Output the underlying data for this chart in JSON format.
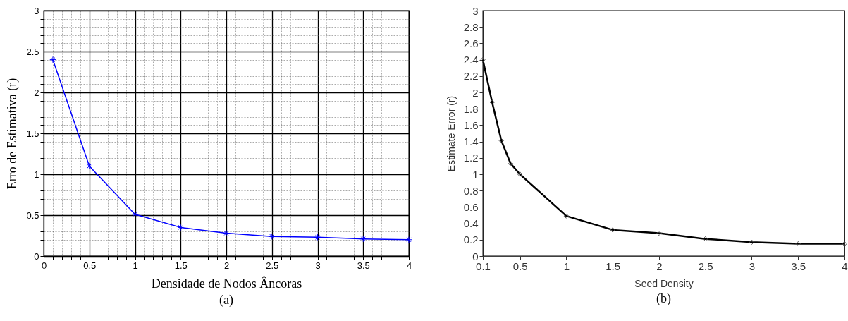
{
  "chart_data": [
    {
      "type": "line",
      "xlabel": "Densidade de Nodos Âncoras",
      "ylabel": "Erro de Estimativa (r)",
      "annotations": [
        "(a)"
      ],
      "grid": true,
      "marker": "cross",
      "x": [
        0.1,
        0.5,
        1,
        1.5,
        2,
        2.5,
        3,
        3.5,
        4
      ],
      "series": [
        {
          "color": "#0000ff",
          "values": [
            2.4,
            1.1,
            0.51,
            0.35,
            0.28,
            0.24,
            0.23,
            0.21,
            0.2
          ]
        }
      ],
      "xlim": [
        0,
        4
      ],
      "ylim": [
        0,
        3
      ],
      "xticks": [
        0,
        {
          "value": 0.1,
          "label": null
        },
        {
          "value": 0.2,
          "label": null
        },
        {
          "value": 0.3,
          "label": null
        },
        {
          "value": 0.4,
          "label": null
        },
        0.5,
        {
          "value": 0.6,
          "label": null
        },
        {
          "value": 0.7,
          "label": null
        },
        {
          "value": 0.8,
          "label": null
        },
        {
          "value": 0.9,
          "label": null
        },
        1,
        {
          "value": 1.1,
          "label": null
        },
        {
          "value": 1.2,
          "label": null
        },
        {
          "value": 1.3,
          "label": null
        },
        {
          "value": 1.4,
          "label": null
        },
        1.5,
        {
          "value": 1.6,
          "label": null
        },
        {
          "value": 1.7,
          "label": null
        },
        {
          "value": 1.8,
          "label": null
        },
        {
          "value": 1.9,
          "label": null
        },
        2,
        {
          "value": 2.1,
          "label": null
        },
        {
          "value": 2.2,
          "label": null
        },
        {
          "value": 2.3,
          "label": null
        },
        {
          "value": 2.4,
          "label": null
        },
        2.5,
        {
          "value": 2.6,
          "label": null
        },
        {
          "value": 2.7,
          "label": null
        },
        {
          "value": 2.8,
          "label": null
        },
        {
          "value": 2.9,
          "label": null
        },
        3,
        {
          "value": 3.1,
          "label": null
        },
        {
          "value": 3.2,
          "label": null
        },
        {
          "value": 3.3,
          "label": null
        },
        {
          "value": 3.4,
          "label": null
        },
        3.5,
        {
          "value": 3.6,
          "label": null
        },
        {
          "value": 3.7,
          "label": null
        },
        {
          "value": 3.8,
          "label": null
        },
        {
          "value": 3.9,
          "label": null
        },
        4
      ],
      "yticks": [
        0,
        {
          "value": 0.1,
          "label": null
        },
        {
          "value": 0.2,
          "label": null
        },
        {
          "value": 0.3,
          "label": null
        },
        {
          "value": 0.4,
          "label": null
        },
        0.5,
        {
          "value": 0.6,
          "label": null
        },
        {
          "value": 0.7,
          "label": null
        },
        {
          "value": 0.8,
          "label": null
        },
        {
          "value": 0.9,
          "label": null
        },
        1,
        {
          "value": 1.1,
          "label": null
        },
        {
          "value": 1.2,
          "label": null
        },
        {
          "value": 1.3,
          "label": null
        },
        {
          "value": 1.4,
          "label": null
        },
        1.5,
        {
          "value": 1.6,
          "label": null
        },
        {
          "value": 1.7,
          "label": null
        },
        {
          "value": 1.8,
          "label": null
        },
        {
          "value": 1.9,
          "label": null
        },
        2,
        {
          "value": 2.1,
          "label": null
        },
        {
          "value": 2.2,
          "label": null
        },
        {
          "value": 2.3,
          "label": null
        },
        {
          "value": 2.4,
          "label": null
        },
        2.5,
        {
          "value": 2.6,
          "label": null
        },
        {
          "value": 2.7,
          "label": null
        },
        {
          "value": 2.8,
          "label": null
        },
        {
          "value": 2.9,
          "label": null
        },
        3
      ]
    },
    {
      "type": "line",
      "xlabel": "Seed Density",
      "ylabel": "Estimate Error (r)",
      "annotations": [
        "(b)"
      ],
      "grid": false,
      "marker": "diamond",
      "x": [
        0.1,
        0.2,
        0.3,
        0.4,
        0.5,
        1,
        1.5,
        2,
        2.5,
        3,
        3.5,
        4
      ],
      "series": [
        {
          "color": "#000000",
          "values": [
            2.4,
            1.88,
            1.41,
            1.13,
            1.0,
            0.49,
            0.32,
            0.28,
            0.21,
            0.17,
            0.15,
            0.15
          ]
        }
      ],
      "xlim": [
        0.1,
        4
      ],
      "ylim": [
        0,
        3
      ],
      "xticks": [
        0.1,
        0.5,
        1,
        1.5,
        2,
        2.5,
        3,
        3.5,
        4
      ],
      "yticks": [
        0,
        0.2,
        0.4,
        0.6,
        0.8,
        1,
        1.2,
        1.4,
        1.6,
        1.8,
        2,
        2.2,
        2.4,
        2.6,
        2.8,
        3
      ]
    }
  ]
}
